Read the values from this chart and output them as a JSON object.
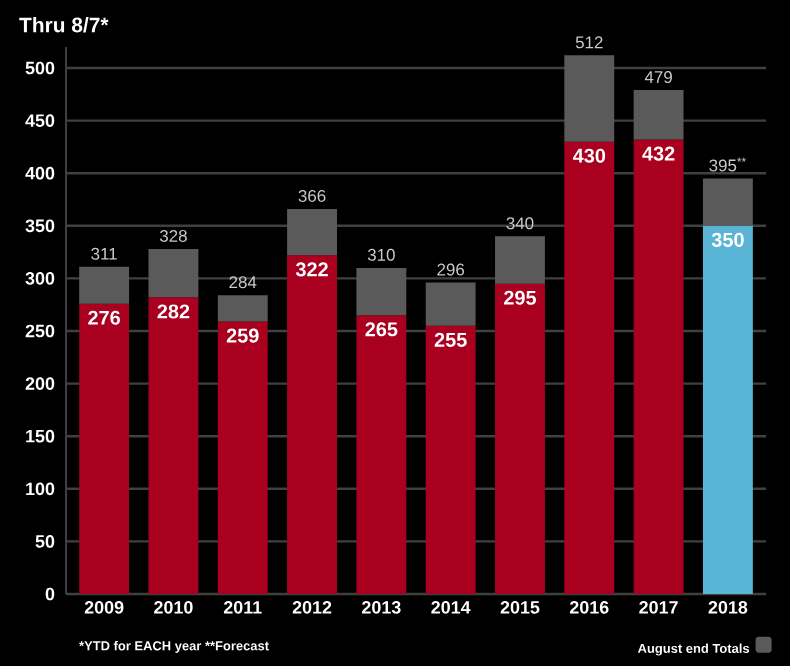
{
  "chart_data": {
    "type": "bar",
    "title": "Thru 8/7*",
    "categories": [
      "2009",
      "2010",
      "2011",
      "2012",
      "2013",
      "2014",
      "2015",
      "2016",
      "2017",
      "2018"
    ],
    "stacked": true,
    "ylim": [
      0,
      520
    ],
    "yticks": [
      0,
      50,
      100,
      150,
      200,
      250,
      300,
      350,
      400,
      450,
      500
    ],
    "grid": "y",
    "legend": "bottom right",
    "annotations": [
      "*YTD for EACH year **Forecast"
    ],
    "series": [
      {
        "colors": [
          "#a8001e",
          "#a8001e",
          "#a8001e",
          "#a8001e",
          "#a8001e",
          "#a8001e",
          "#a8001e",
          "#a8001e",
          "#a8001e",
          "#5ab4d6"
        ],
        "values": [
          276,
          282,
          259,
          322,
          265,
          255,
          295,
          430,
          432,
          350
        ],
        "value_labels": [
          "276",
          "282",
          "259",
          "322",
          "265",
          "255",
          "295",
          "430",
          "432",
          "350"
        ]
      },
      {
        "name": "August end Totals",
        "color": "#5a5a5a",
        "values": [
          35,
          46,
          25,
          44,
          45,
          41,
          45,
          82,
          47,
          45
        ]
      }
    ],
    "totals": [
      "311",
      "328",
      "284",
      "366",
      "310",
      "296",
      "340",
      "512",
      "479",
      "395$^{**}$"
    ]
  }
}
